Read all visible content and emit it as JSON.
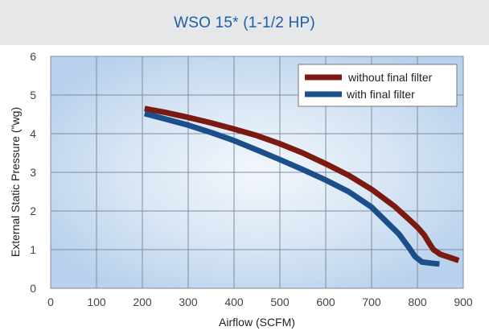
{
  "chart_data": {
    "type": "line",
    "title": "WSO 15* (1-1/2 HP)",
    "xlabel": "Airflow (SCFM)",
    "ylabel": "External Static Pressure (\"wg)",
    "xlim": [
      0,
      900
    ],
    "ylim": [
      0,
      6
    ],
    "xticks": [
      "0",
      "100",
      "200",
      "300",
      "400",
      "500",
      "600",
      "700",
      "800",
      "900"
    ],
    "yticks": [
      "0",
      "1",
      "2",
      "3",
      "4",
      "5",
      "6"
    ],
    "grid": true,
    "legend_position": "top-right",
    "series": [
      {
        "name": "without final filter",
        "color": "#7b1a10",
        "points": [
          [
            205,
            4.65
          ],
          [
            250,
            4.55
          ],
          [
            300,
            4.42
          ],
          [
            350,
            4.28
          ],
          [
            400,
            4.12
          ],
          [
            450,
            3.95
          ],
          [
            500,
            3.74
          ],
          [
            550,
            3.5
          ],
          [
            600,
            3.22
          ],
          [
            650,
            2.92
          ],
          [
            700,
            2.56
          ],
          [
            750,
            2.12
          ],
          [
            780,
            1.8
          ],
          [
            800,
            1.58
          ],
          [
            815,
            1.38
          ],
          [
            825,
            1.18
          ],
          [
            835,
            1.0
          ],
          [
            850,
            0.88
          ],
          [
            870,
            0.8
          ],
          [
            890,
            0.72
          ]
        ]
      },
      {
        "name": "with final filter",
        "color": "#1b4f8c",
        "points": [
          [
            205,
            4.52
          ],
          [
            250,
            4.38
          ],
          [
            300,
            4.22
          ],
          [
            350,
            4.03
          ],
          [
            400,
            3.82
          ],
          [
            450,
            3.58
          ],
          [
            500,
            3.33
          ],
          [
            550,
            3.07
          ],
          [
            600,
            2.8
          ],
          [
            650,
            2.5
          ],
          [
            700,
            2.1
          ],
          [
            730,
            1.75
          ],
          [
            760,
            1.4
          ],
          [
            780,
            1.08
          ],
          [
            795,
            0.82
          ],
          [
            810,
            0.68
          ],
          [
            830,
            0.65
          ],
          [
            848,
            0.63
          ]
        ]
      }
    ]
  }
}
